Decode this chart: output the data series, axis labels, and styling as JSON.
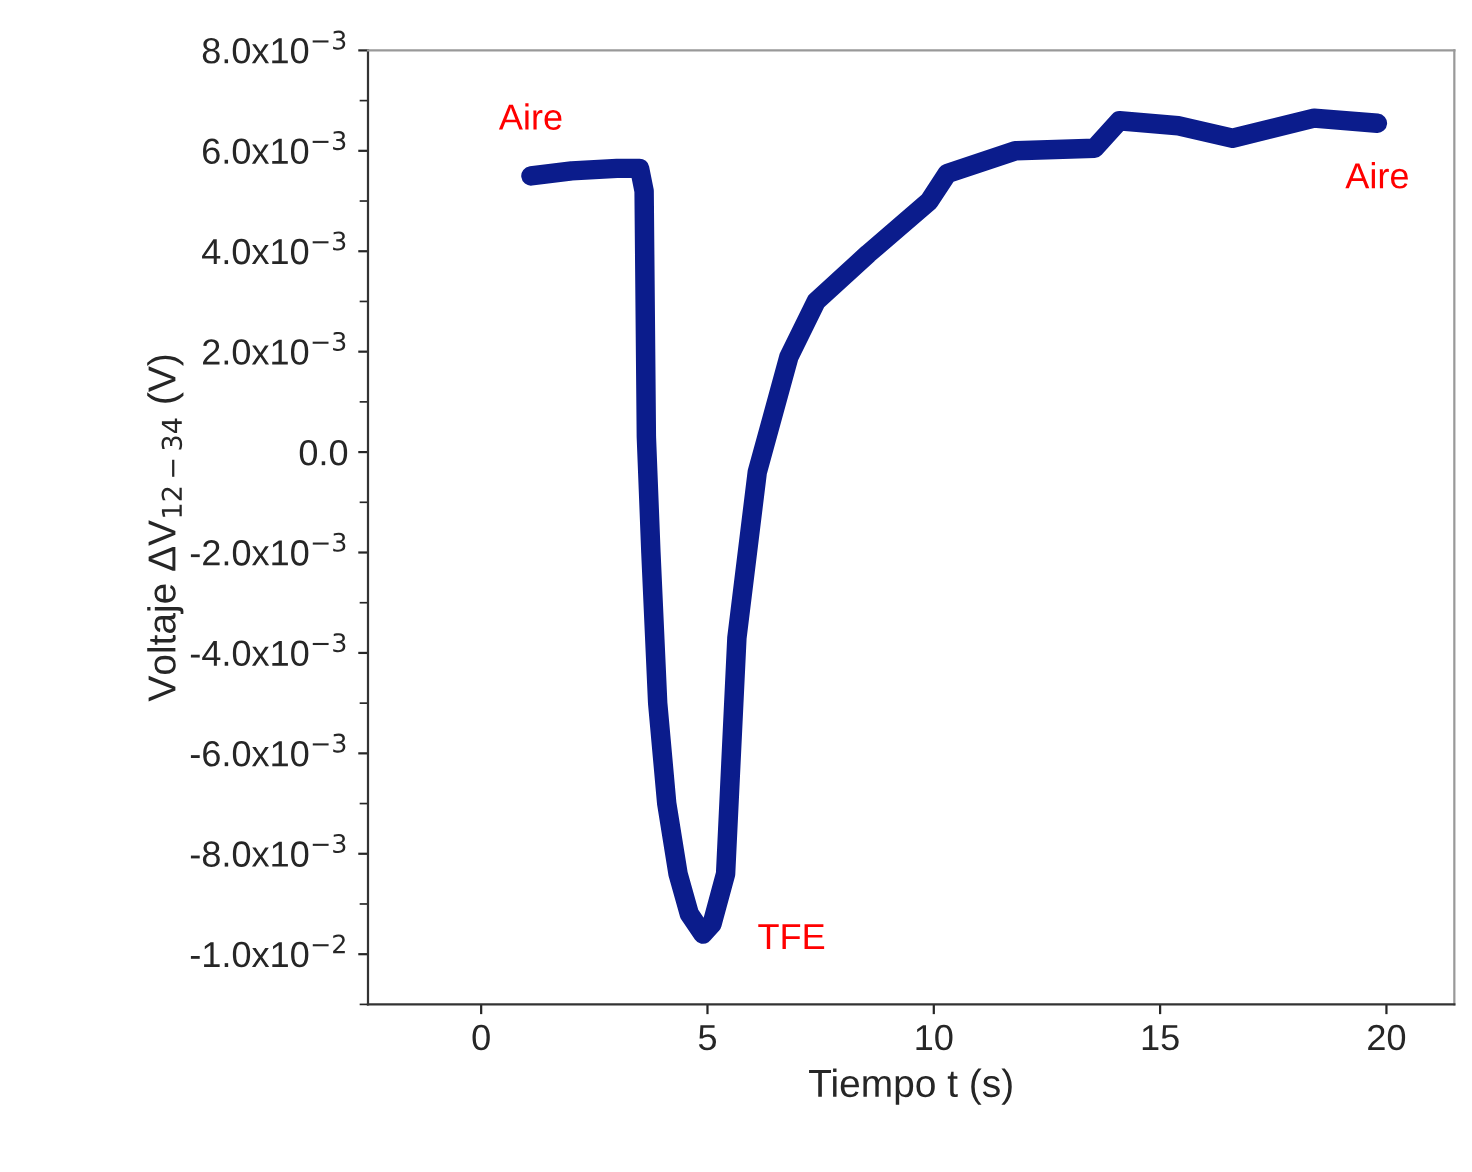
{
  "chart_data": {
    "type": "line",
    "xlabel": "Tiempo t (s)",
    "ylabel": "Voltaje ΔV$_{12−34}$ (V)",
    "xlim": [
      -2.5,
      21.5
    ],
    "xticks": [
      0,
      5,
      10,
      15,
      20
    ],
    "ylim": [
      -0.011,
      0.008
    ],
    "yticks": [
      {
        "value": 0.008,
        "label": "8.0x10$^{−3}$"
      },
      {
        "value": 0.006,
        "label": "6.0x10$^{−3}$"
      },
      {
        "value": 0.004,
        "label": "4.0x10$^{−3}$"
      },
      {
        "value": 0.002,
        "label": "2.0x10$^{−3}$"
      },
      {
        "value": 0,
        "label": "0.0"
      },
      {
        "value": -0.002,
        "label": "-2.0x10$^{−3}$"
      },
      {
        "value": -0.004,
        "label": "-4.0x10$^{−3}$"
      },
      {
        "value": -0.006,
        "label": "-6.0x10$^{−3}$"
      },
      {
        "value": -0.008,
        "label": "-8.0x10$^{−3}$"
      },
      {
        "value": -0.01,
        "label": "-1.0x10$^{−2}$"
      }
    ],
    "series": [
      {
        "color": "#0b1c8c",
        "x": [
          1.1,
          2.0,
          3.0,
          3.5,
          3.6,
          3.65,
          3.75,
          3.9,
          4.1,
          4.35,
          4.6,
          4.9,
          5.1,
          5.4,
          5.65,
          6.1,
          6.8,
          7.4,
          8.55,
          9.9,
          10.3,
          11.8,
          13.55,
          14.1,
          15.4,
          16.6,
          18.4,
          19.8
        ],
        "values": [
          0.0055,
          0.0056,
          0.00565,
          0.00565,
          0.0052,
          0.0003,
          -0.002,
          -0.005,
          -0.007,
          -0.0084,
          -0.0092,
          -0.0096,
          -0.0094,
          -0.0084,
          -0.0037,
          -0.0004,
          0.0019,
          0.003,
          0.00395,
          0.005,
          0.00555,
          0.006,
          0.00605,
          0.0066,
          0.0065,
          0.00625,
          0.00665,
          0.00655
        ]
      }
    ],
    "annotations": [
      {
        "text": "Aire",
        "x": 1.1,
        "y": 0.0055
      },
      {
        "text": "TFE",
        "x": 5.0,
        "y": -0.0096
      },
      {
        "text": "Aire",
        "x": 19.8,
        "y": 0.00655
      }
    ]
  }
}
